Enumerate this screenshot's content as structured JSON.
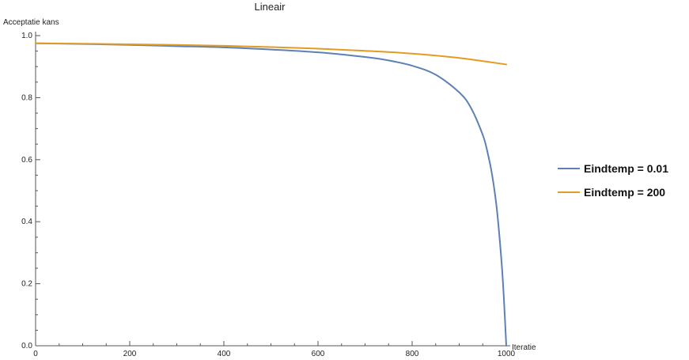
{
  "chart_data": {
    "type": "line",
    "title": "Lineair",
    "xlabel": "Iteratie",
    "ylabel": "Acceptatie kans",
    "xlim": [
      0,
      1000
    ],
    "ylim": [
      0.0,
      1.0
    ],
    "x_ticks": [
      0,
      200,
      400,
      600,
      800,
      1000
    ],
    "y_ticks": [
      0.0,
      0.2,
      0.4,
      0.6,
      0.8,
      1.0
    ],
    "x_tick_labels": [
      "0",
      "200",
      "400",
      "600",
      "800",
      "1000"
    ],
    "y_tick_labels": [
      "0.0",
      "0.2",
      "0.4",
      "0.6",
      "0.8",
      "1.0"
    ],
    "grid": false,
    "legend_position": "right",
    "series": [
      {
        "name": "Eindtemp = 0.01",
        "color": "#5e81b5",
        "x": [
          0,
          100,
          200,
          300,
          400,
          500,
          600,
          700,
          750,
          800,
          850,
          900,
          925,
          950,
          960,
          970,
          980,
          990,
          995,
          1000
        ],
        "y": [
          0.975,
          0.973,
          0.97,
          0.966,
          0.962,
          0.955,
          0.946,
          0.931,
          0.92,
          0.903,
          0.874,
          0.817,
          0.767,
          0.68,
          0.625,
          0.55,
          0.44,
          0.27,
          0.15,
          0.0
        ]
      },
      {
        "name": "Eindtemp = 200",
        "color": "#e19c24",
        "x": [
          0,
          100,
          200,
          300,
          400,
          500,
          600,
          700,
          800,
          900,
          1000
        ],
        "y": [
          0.975,
          0.974,
          0.972,
          0.97,
          0.967,
          0.963,
          0.958,
          0.951,
          0.942,
          0.928,
          0.907
        ]
      }
    ]
  }
}
